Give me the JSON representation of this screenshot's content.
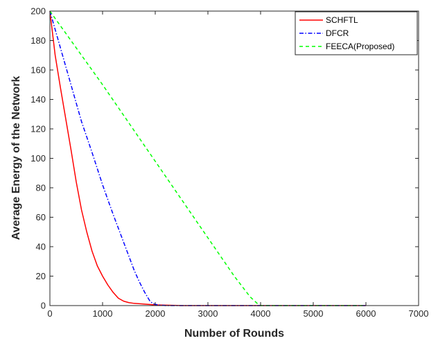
{
  "chart_data": {
    "type": "line",
    "title": "",
    "xlabel": "Number of Rounds",
    "ylabel": "Average Energy of the Network",
    "xlim": [
      0,
      7000
    ],
    "ylim": [
      0,
      200
    ],
    "xticks": [
      0,
      1000,
      2000,
      3000,
      4000,
      5000,
      6000,
      7000
    ],
    "yticks": [
      0,
      20,
      40,
      60,
      80,
      100,
      120,
      140,
      160,
      180,
      200
    ],
    "xtick_labels": [
      "0",
      "1000",
      "2000",
      "3000",
      "4000",
      "5000",
      "6000",
      "7000"
    ],
    "ytick_labels": [
      "0",
      "20",
      "40",
      "60",
      "80",
      "100",
      "120",
      "140",
      "160",
      "180",
      "200"
    ],
    "grid": false,
    "legend_position": "top-right",
    "series": [
      {
        "name": "SCHFTL",
        "color": "#ff0000",
        "dash": "solid",
        "x": [
          0,
          100,
          200,
          300,
          400,
          500,
          600,
          700,
          800,
          900,
          1000,
          1100,
          1200,
          1300,
          1400,
          1500,
          1600,
          1800,
          2000,
          2200,
          2500,
          3000,
          4000,
          5000,
          6000
        ],
        "y": [
          200,
          170,
          148,
          127,
          106,
          84,
          65,
          50,
          37,
          27,
          20,
          14,
          9,
          5,
          3,
          2,
          1.5,
          1,
          0.5,
          0.3,
          0,
          0,
          0,
          0,
          0
        ]
      },
      {
        "name": "DFCR",
        "color": "#0000ff",
        "dash": "dashdot",
        "x": [
          0,
          200,
          400,
          600,
          800,
          1000,
          1200,
          1400,
          1600,
          1700,
          1800,
          1900,
          1950,
          2000,
          2100,
          2200,
          2500,
          3000,
          4000,
          5000,
          6000
        ],
        "y": [
          200,
          175,
          150,
          125,
          104,
          82,
          62,
          43,
          24,
          16,
          9,
          3,
          1.5,
          0.8,
          0.3,
          0,
          0,
          0,
          0,
          0,
          0
        ]
      },
      {
        "name": "FEECA(Proposed)",
        "color": "#00ff00",
        "dash": "dashed",
        "x": [
          0,
          500,
          1000,
          1500,
          2000,
          2500,
          3000,
          3500,
          3800,
          3950,
          4000,
          4500,
          5000,
          5500,
          6000
        ],
        "y": [
          200,
          175,
          150,
          124,
          98,
          72,
          46,
          20,
          6,
          1,
          0,
          0,
          0,
          0,
          0
        ]
      }
    ]
  }
}
